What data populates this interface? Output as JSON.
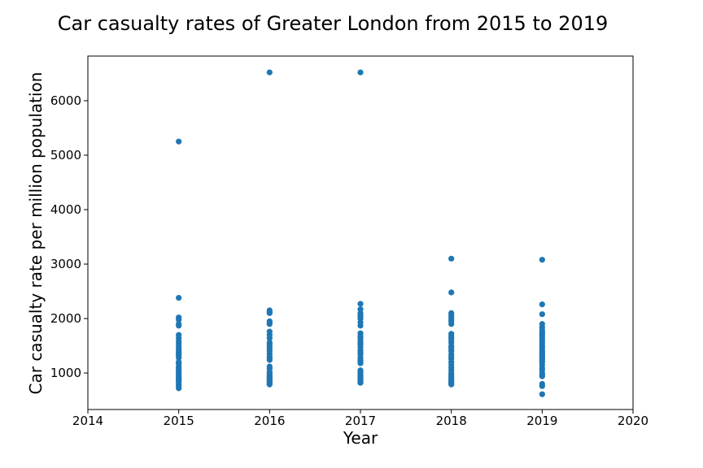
{
  "chart_data": {
    "type": "scatter",
    "title": "Car casualty rates of Greater London from 2015 to 2019",
    "xlabel": "Year",
    "ylabel": "Car casualty rate per million population",
    "xlim": [
      2014,
      2020
    ],
    "ylim": [
      330,
      6820
    ],
    "x_ticks": [
      2014,
      2015,
      2016,
      2017,
      2018,
      2019,
      2020
    ],
    "y_ticks": [
      1000,
      2000,
      3000,
      4000,
      5000,
      6000
    ],
    "grid": false,
    "marker_color": "#1f77b4",
    "series": [
      {
        "x": [
          2015,
          2015,
          2015,
          2015,
          2015,
          2015,
          2015,
          2015,
          2015,
          2015,
          2015,
          2015,
          2015,
          2015,
          2015,
          2015,
          2015,
          2015,
          2015,
          2015,
          2015,
          2015,
          2015,
          2015,
          2015,
          2015,
          2015,
          2015,
          2015,
          2015,
          2015,
          2015,
          2015,
          2016,
          2016,
          2016,
          2016,
          2016,
          2016,
          2016,
          2016,
          2016,
          2016,
          2016,
          2016,
          2016,
          2016,
          2016,
          2016,
          2016,
          2016,
          2016,
          2016,
          2016,
          2016,
          2016,
          2016,
          2016,
          2016,
          2016,
          2016,
          2016,
          2016,
          2016,
          2016,
          2016,
          2017,
          2017,
          2017,
          2017,
          2017,
          2017,
          2017,
          2017,
          2017,
          2017,
          2017,
          2017,
          2017,
          2017,
          2017,
          2017,
          2017,
          2017,
          2017,
          2017,
          2017,
          2017,
          2017,
          2017,
          2017,
          2017,
          2017,
          2017,
          2017,
          2017,
          2017,
          2017,
          2017,
          2018,
          2018,
          2018,
          2018,
          2018,
          2018,
          2018,
          2018,
          2018,
          2018,
          2018,
          2018,
          2018,
          2018,
          2018,
          2018,
          2018,
          2018,
          2018,
          2018,
          2018,
          2018,
          2018,
          2018,
          2018,
          2018,
          2018,
          2018,
          2018,
          2018,
          2018,
          2018,
          2018,
          2019,
          2019,
          2019,
          2019,
          2019,
          2019,
          2019,
          2019,
          2019,
          2019,
          2019,
          2019,
          2019,
          2019,
          2019,
          2019,
          2019,
          2019,
          2019,
          2019,
          2019,
          2019,
          2019,
          2019,
          2019,
          2019,
          2019,
          2019,
          2019,
          2019,
          2019,
          2019,
          2019
        ],
        "y": [
          5250,
          2380,
          2020,
          1980,
          1900,
          1870,
          1700,
          1640,
          1580,
          1540,
          1490,
          1450,
          1420,
          1380,
          1350,
          1320,
          1280,
          1200,
          1170,
          1120,
          1090,
          1060,
          1020,
          990,
          960,
          930,
          910,
          880,
          860,
          840,
          790,
          760,
          720,
          6520,
          2150,
          2120,
          2100,
          1950,
          1920,
          1900,
          1760,
          1700,
          1640,
          1560,
          1530,
          1490,
          1450,
          1400,
          1350,
          1300,
          1270,
          1240,
          1120,
          1080,
          1020,
          990,
          960,
          940,
          920,
          900,
          880,
          860,
          840,
          820,
          800,
          790,
          6520,
          2270,
          2170,
          2100,
          2070,
          2040,
          2000,
          1930,
          1870,
          1730,
          1680,
          1640,
          1590,
          1560,
          1530,
          1480,
          1420,
          1380,
          1340,
          1280,
          1230,
          1200,
          1180,
          1050,
          1020,
          990,
          960,
          930,
          900,
          870,
          850,
          830,
          820,
          3100,
          2480,
          2100,
          2060,
          2020,
          1980,
          1950,
          1900,
          1720,
          1680,
          1640,
          1600,
          1560,
          1500,
          1470,
          1430,
          1400,
          1340,
          1300,
          1260,
          1200,
          1150,
          1100,
          1050,
          1000,
          960,
          930,
          900,
          880,
          850,
          830,
          810,
          790,
          3080,
          2260,
          2080,
          1900,
          1840,
          1790,
          1750,
          1720,
          1690,
          1650,
          1610,
          1570,
          1540,
          1500,
          1470,
          1440,
          1400,
          1380,
          1350,
          1320,
          1290,
          1260,
          1230,
          1200,
          1150,
          1090,
          1060,
          1000,
          970,
          940,
          800,
          760,
          610
        ]
      }
    ]
  }
}
